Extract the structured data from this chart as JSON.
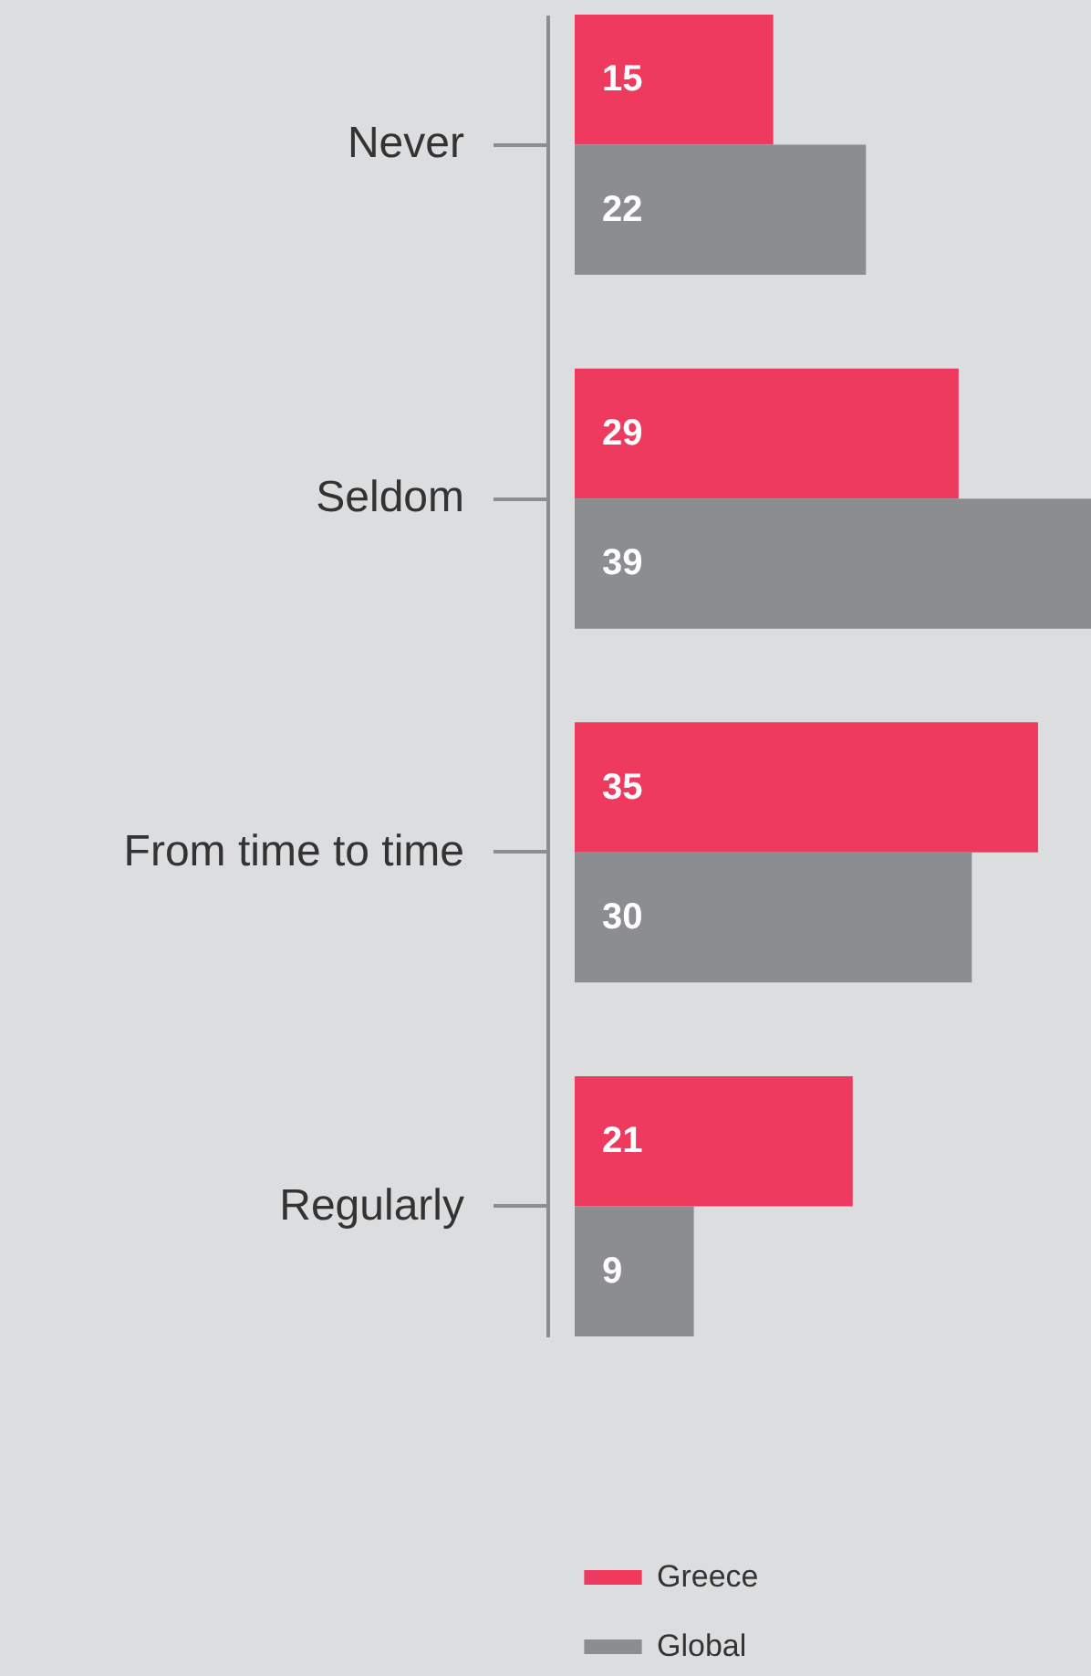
{
  "chart_data": {
    "type": "bar",
    "orientation": "horizontal",
    "categories": [
      "Never",
      "Seldom",
      "From time to time",
      "Regularly"
    ],
    "series": [
      {
        "name": "Greece",
        "color": "#ef3a60",
        "values": [
          15,
          29,
          35,
          21
        ]
      },
      {
        "name": "Global",
        "color": "#8c8d90",
        "values": [
          22,
          39,
          30,
          9
        ]
      }
    ],
    "data_labels": true,
    "legend": "bottom"
  }
}
